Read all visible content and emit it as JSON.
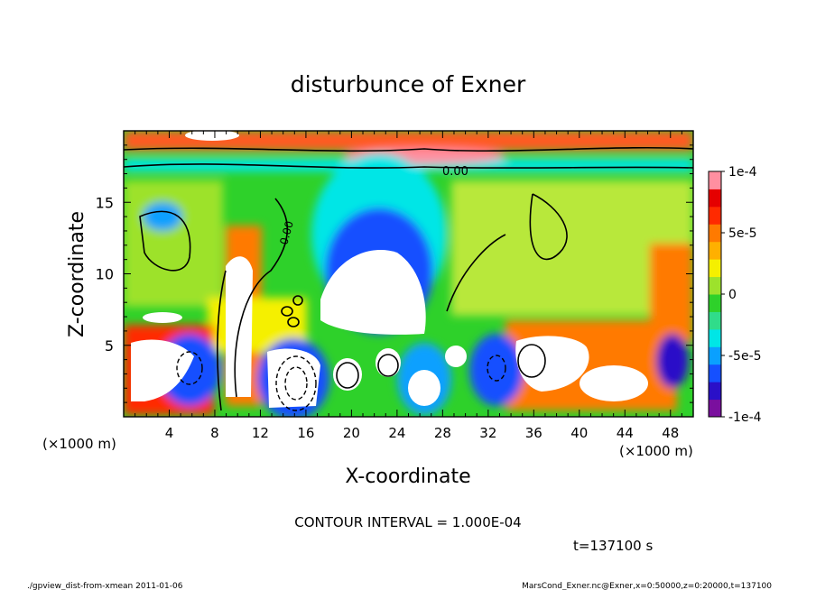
{
  "chart_data": {
    "type": "heatmap",
    "title": "disturbunce of Exner",
    "xlabel": "X-coordinate",
    "ylabel": "Z-coordinate",
    "x_unit_left": "(×1000 m)",
    "x_unit_right": "(×1000 m)",
    "xlim": [
      0,
      50
    ],
    "ylim": [
      0,
      20
    ],
    "x_ticks": [
      "4",
      "8",
      "12",
      "16",
      "20",
      "24",
      "28",
      "32",
      "36",
      "40",
      "44",
      "48"
    ],
    "x_tick_values": [
      4,
      8,
      12,
      16,
      20,
      24,
      28,
      32,
      36,
      40,
      44,
      48
    ],
    "y_ticks": [
      "5",
      "10",
      "15"
    ],
    "y_tick_values": [
      5,
      10,
      15
    ],
    "colorbar": {
      "range": [
        -0.0001,
        0.0001
      ],
      "labels": [
        "1e-4",
        "5e-5",
        "0",
        "-5e-5",
        "-1e-4"
      ],
      "label_values": [
        0.0001,
        5e-05,
        0,
        -5e-05,
        -0.0001
      ],
      "colors": [
        "#7a0f9e",
        "#2a10c8",
        "#1550ff",
        "#0aa0ff",
        "#00e6e6",
        "#30dc8a",
        "#2ed12a",
        "#9de22c",
        "#f5f000",
        "#ffb000",
        "#ff7a00",
        "#ff2a00",
        "#e50000",
        "#ff8fa0"
      ]
    },
    "contour_labels": [
      "0.00",
      "0.00"
    ],
    "contour_interval": "CONTOUR INTERVAL = 1.000E-04",
    "time_label": "t=137100 s",
    "footer_left": "./gpview_dist-from-xmean  2011-01-06",
    "footer_right": "MarsCond_Exner.nc@Exner,x=0:50000,z=0:20000,t=137100"
  }
}
